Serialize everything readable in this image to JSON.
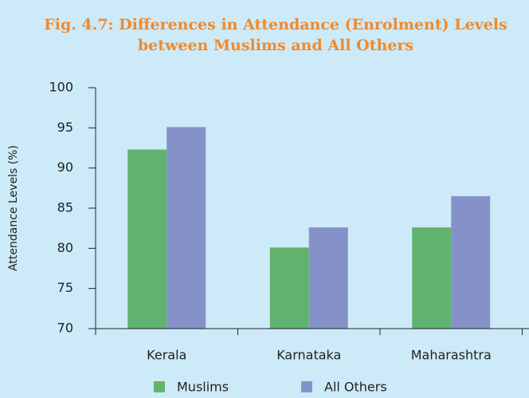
{
  "chart_data": {
    "type": "bar",
    "title": [
      "Fig. 4.7: Differences in Attendance (Enrolment) Levels",
      "between Muslims and All Others"
    ],
    "y_label": "Attendance Levels (%)",
    "categories": [
      "Kerala",
      "Karnataka",
      "Maharashtra"
    ],
    "series": [
      {
        "name": "Muslims",
        "color": "#5fb36e",
        "values": [
          92.3,
          80.1,
          82.6
        ]
      },
      {
        "name": "All Others",
        "color": "#8592c9",
        "values": [
          95.1,
          82.6,
          86.5
        ]
      }
    ],
    "ylim": [
      70,
      100
    ],
    "yticks": [
      70,
      75,
      80,
      85,
      90,
      95,
      100
    ],
    "grid": false
  }
}
